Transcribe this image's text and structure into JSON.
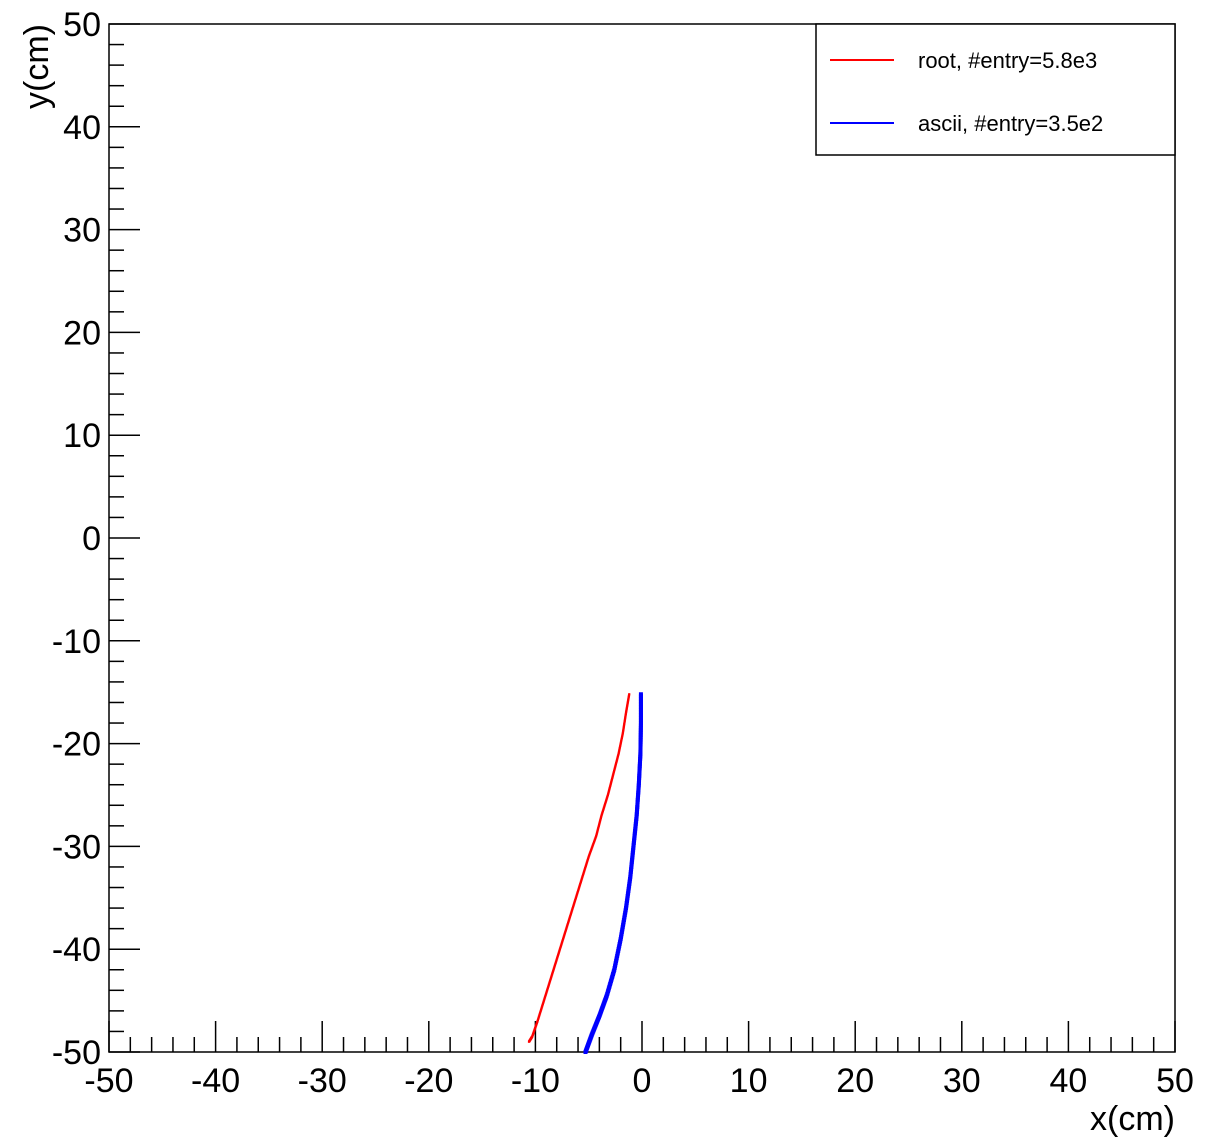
{
  "chart_data": {
    "type": "scatter",
    "xlabel": "x(cm)",
    "ylabel": "y(cm)",
    "xlim": [
      -50,
      50
    ],
    "ylim": [
      -50,
      50
    ],
    "x_ticks": [
      -50,
      -40,
      -30,
      -20,
      -10,
      0,
      10,
      20,
      30,
      40,
      50
    ],
    "y_ticks": [
      -50,
      -40,
      -30,
      -20,
      -10,
      0,
      10,
      20,
      30,
      40,
      50
    ],
    "legend_position": "top-right",
    "series": [
      {
        "name": "root, #entry=5.8e3",
        "color": "#ff0000",
        "points": [
          [
            -1.2,
            -15.2
          ],
          [
            -1.5,
            -17
          ],
          [
            -1.8,
            -19
          ],
          [
            -2.2,
            -21
          ],
          [
            -2.7,
            -23
          ],
          [
            -3.2,
            -25
          ],
          [
            -3.8,
            -27
          ],
          [
            -4.3,
            -29
          ],
          [
            -5.0,
            -31
          ],
          [
            -5.6,
            -33
          ],
          [
            -6.2,
            -35
          ],
          [
            -6.8,
            -37
          ],
          [
            -7.4,
            -39
          ],
          [
            -8.0,
            -41
          ],
          [
            -8.6,
            -43
          ],
          [
            -9.2,
            -45
          ],
          [
            -9.8,
            -47
          ],
          [
            -10.3,
            -48.5
          ],
          [
            -10.6,
            -49
          ]
        ]
      },
      {
        "name": "ascii, #entry=3.5e2",
        "color": "#0000ff",
        "points": [
          [
            -0.1,
            -15.2
          ],
          [
            -0.1,
            -18
          ],
          [
            -0.15,
            -21
          ],
          [
            -0.3,
            -24
          ],
          [
            -0.5,
            -27
          ],
          [
            -0.8,
            -30
          ],
          [
            -1.1,
            -33
          ],
          [
            -1.5,
            -36
          ],
          [
            -2.0,
            -39
          ],
          [
            -2.6,
            -42
          ],
          [
            -3.3,
            -44.5
          ],
          [
            -4.0,
            -46.5
          ],
          [
            -4.7,
            -48.3
          ],
          [
            -5.3,
            -50
          ]
        ]
      }
    ]
  }
}
